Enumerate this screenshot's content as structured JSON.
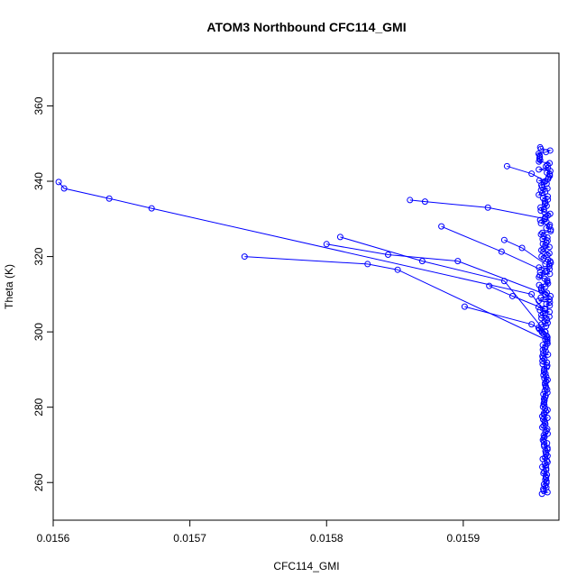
{
  "chart_data": {
    "type": "line",
    "title": "ATOM3 Northbound CFC114_GMI",
    "xlabel": "CFC114_GMI",
    "ylabel": "Theta (K)",
    "xlim": [
      0.0156,
      0.01597
    ],
    "ylim": [
      250,
      374
    ],
    "xticks": [
      0.0156,
      0.0157,
      0.0158,
      0.0159
    ],
    "xtick_labels": [
      "0.0156",
      "0.0157",
      "0.0158",
      "0.0159"
    ],
    "yticks": [
      260,
      280,
      300,
      320,
      340,
      360
    ],
    "ytick_labels": [
      "260",
      "280",
      "300",
      "320",
      "340",
      "360"
    ],
    "grid": false,
    "legend": "none",
    "marker": "open-circle",
    "color": "#0000ff",
    "series": [
      {
        "x": [
          0.015604,
          0.015608,
          0.015641,
          0.015672,
          0.01595,
          0.01596
        ],
        "y": [
          339.8,
          338.1,
          335.4,
          332.8,
          310,
          305
        ]
      },
      {
        "x": [
          0.015861,
          0.015872,
          0.015918,
          0.01596
        ],
        "y": [
          335.0,
          334.6,
          333.0,
          330
        ]
      },
      {
        "x": [
          0.01581,
          0.01587,
          0.01593,
          0.01596
        ],
        "y": [
          325.2,
          318.8,
          313.5,
          300
        ]
      },
      {
        "x": [
          0.01574,
          0.01583,
          0.015852,
          0.01596
        ],
        "y": [
          320.0,
          318.0,
          316.5,
          298
        ]
      },
      {
        "x": [
          0.015901,
          0.01595,
          0.01596
        ],
        "y": [
          306.7,
          302,
          300
        ]
      },
      {
        "x": [
          0.015932,
          0.01595,
          0.01596
        ],
        "y": [
          344.0,
          342,
          340
        ]
      },
      {
        "x": [
          0.015884,
          0.015928,
          0.01596
        ],
        "y": [
          328.0,
          321.3,
          316
        ]
      },
      {
        "x": [
          0.0158,
          0.015845,
          0.015896,
          0.01596
        ],
        "y": [
          323.3,
          320.5,
          318.8,
          310
        ]
      },
      {
        "x": [
          0.015919,
          0.015936,
          0.01596
        ],
        "y": [
          312.2,
          309.5,
          306
        ]
      },
      {
        "x": [
          0.01593,
          0.015943,
          0.01596
        ],
        "y": [
          324.4,
          322.3,
          318
        ]
      }
    ],
    "dense_column": {
      "x_center": 0.01596,
      "y_range": [
        257,
        349
      ]
    }
  }
}
